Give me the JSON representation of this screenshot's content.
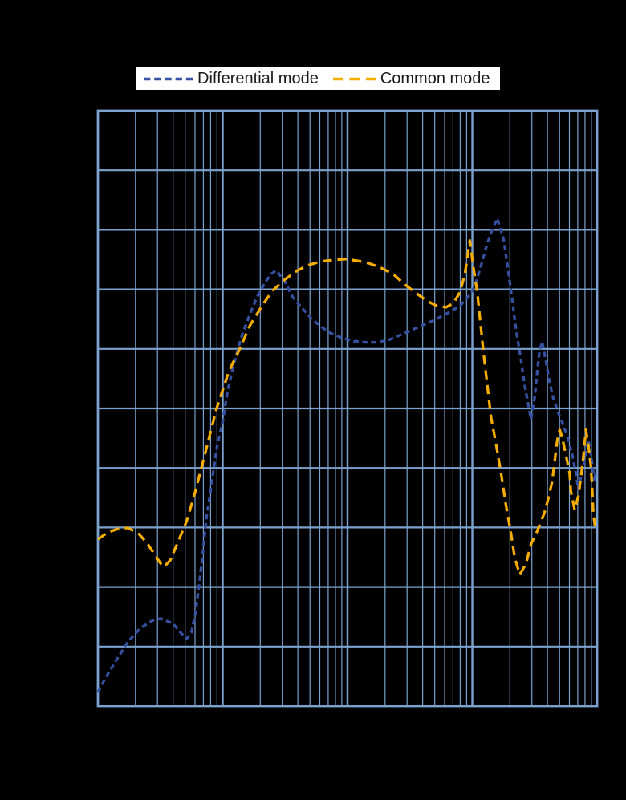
{
  "page": {
    "background_color": "#000000"
  },
  "legend": {
    "background_color": "#FFFFFF",
    "text_color": "#1A1A1A",
    "items": [
      {
        "label": "Differential mode",
        "color": "#3650A2",
        "dash_style": "short-dash"
      },
      {
        "label": "Common mode",
        "color": "#F5AD00",
        "dash_style": "long-dash"
      }
    ]
  },
  "chart_data": {
    "type": "line",
    "title": "",
    "xlabel": "",
    "ylabel": "",
    "x_axis": {
      "scale": "log",
      "decades": 4,
      "tick_labels_visible": false
    },
    "y_axis": {
      "divisions": 10,
      "tick_labels_visible": false
    },
    "grid": {
      "on": true,
      "color": "#7BA2CE",
      "border_color": "#7BA2CE"
    },
    "legend_position": "top-center",
    "series": [
      {
        "name": "Differential mode",
        "color": "#3650A2",
        "dash": [
          6.5,
          4.5
        ],
        "points_units": "x in log10-decades from left edge (0-4), y in grid divisions from bottom (0-10)",
        "points": [
          [
            0.0,
            0.23
          ],
          [
            0.06,
            0.47
          ],
          [
            0.15,
            0.78
          ],
          [
            0.24,
            1.08
          ],
          [
            0.34,
            1.31
          ],
          [
            0.44,
            1.44
          ],
          [
            0.5,
            1.47
          ],
          [
            0.6,
            1.39
          ],
          [
            0.66,
            1.24
          ],
          [
            0.71,
            1.13
          ],
          [
            0.75,
            1.24
          ],
          [
            0.78,
            1.55
          ],
          [
            0.81,
            2.02
          ],
          [
            0.84,
            2.56
          ],
          [
            0.87,
            3.17
          ],
          [
            0.91,
            3.71
          ],
          [
            0.95,
            4.31
          ],
          [
            1.0,
            4.78
          ],
          [
            1.04,
            5.3
          ],
          [
            1.09,
            5.75
          ],
          [
            1.15,
            6.2
          ],
          [
            1.21,
            6.54
          ],
          [
            1.27,
            6.85
          ],
          [
            1.34,
            7.12
          ],
          [
            1.39,
            7.26
          ],
          [
            1.43,
            7.32
          ],
          [
            1.5,
            7.12
          ],
          [
            1.56,
            6.87
          ],
          [
            1.63,
            6.7
          ],
          [
            1.71,
            6.51
          ],
          [
            1.79,
            6.37
          ],
          [
            1.86,
            6.27
          ],
          [
            1.95,
            6.19
          ],
          [
            2.05,
            6.13
          ],
          [
            2.14,
            6.11
          ],
          [
            2.24,
            6.11
          ],
          [
            2.33,
            6.15
          ],
          [
            2.43,
            6.24
          ],
          [
            2.56,
            6.36
          ],
          [
            2.69,
            6.48
          ],
          [
            2.82,
            6.62
          ],
          [
            2.9,
            6.72
          ],
          [
            2.97,
            6.88
          ],
          [
            3.02,
            7.05
          ],
          [
            3.07,
            7.4
          ],
          [
            3.11,
            7.7
          ],
          [
            3.15,
            7.95
          ],
          [
            3.2,
            8.19
          ],
          [
            3.25,
            7.85
          ],
          [
            3.29,
            7.28
          ],
          [
            3.32,
            6.81
          ],
          [
            3.35,
            6.33
          ],
          [
            3.39,
            5.82
          ],
          [
            3.42,
            5.39
          ],
          [
            3.45,
            5.05
          ],
          [
            3.47,
            4.82
          ],
          [
            3.5,
            5.19
          ],
          [
            3.52,
            5.63
          ],
          [
            3.54,
            5.98
          ],
          [
            3.56,
            6.12
          ],
          [
            3.59,
            5.8
          ],
          [
            3.62,
            5.43
          ],
          [
            3.65,
            5.16
          ],
          [
            3.69,
            4.92
          ],
          [
            3.73,
            4.72
          ],
          [
            3.77,
            4.47
          ],
          [
            3.8,
            4.23
          ],
          [
            3.83,
            3.91
          ],
          [
            3.85,
            3.64
          ],
          [
            3.88,
            3.94
          ],
          [
            3.91,
            4.25
          ],
          [
            3.93,
            4.47
          ],
          [
            3.95,
            4.23
          ],
          [
            3.97,
            3.94
          ],
          [
            3.98,
            3.77
          ],
          [
            3.99,
            3.98
          ]
        ]
      },
      {
        "name": "Common mode",
        "color": "#F5AD00",
        "dash": [
          11.5,
          7
        ],
        "points_units": "x in log10-decades from left edge (0-4), y in grid divisions from bottom (0-10)",
        "points": [
          [
            0.0,
            2.8
          ],
          [
            0.08,
            2.92
          ],
          [
            0.18,
            2.99
          ],
          [
            0.24,
            2.99
          ],
          [
            0.32,
            2.91
          ],
          [
            0.39,
            2.75
          ],
          [
            0.46,
            2.53
          ],
          [
            0.5,
            2.4
          ],
          [
            0.53,
            2.34
          ],
          [
            0.58,
            2.45
          ],
          [
            0.63,
            2.7
          ],
          [
            0.71,
            3.1
          ],
          [
            0.78,
            3.6
          ],
          [
            0.86,
            4.25
          ],
          [
            0.95,
            4.99
          ],
          [
            1.05,
            5.63
          ],
          [
            1.13,
            5.97
          ],
          [
            1.22,
            6.4
          ],
          [
            1.32,
            6.74
          ],
          [
            1.4,
            6.98
          ],
          [
            1.5,
            7.17
          ],
          [
            1.6,
            7.32
          ],
          [
            1.69,
            7.41
          ],
          [
            1.79,
            7.47
          ],
          [
            1.88,
            7.49
          ],
          [
            1.98,
            7.51
          ],
          [
            2.08,
            7.48
          ],
          [
            2.17,
            7.44
          ],
          [
            2.27,
            7.36
          ],
          [
            2.37,
            7.25
          ],
          [
            2.46,
            7.08
          ],
          [
            2.56,
            6.92
          ],
          [
            2.64,
            6.8
          ],
          [
            2.72,
            6.72
          ],
          [
            2.79,
            6.7
          ],
          [
            2.85,
            6.77
          ],
          [
            2.9,
            6.95
          ],
          [
            2.94,
            7.25
          ],
          [
            2.98,
            7.82
          ],
          [
            3.01,
            7.35
          ],
          [
            3.04,
            6.95
          ],
          [
            3.06,
            6.54
          ],
          [
            3.09,
            5.93
          ],
          [
            3.12,
            5.39
          ],
          [
            3.15,
            4.85
          ],
          [
            3.19,
            4.41
          ],
          [
            3.23,
            3.91
          ],
          [
            3.27,
            3.37
          ],
          [
            3.31,
            2.9
          ],
          [
            3.34,
            2.49
          ],
          [
            3.38,
            2.21
          ],
          [
            3.43,
            2.39
          ],
          [
            3.47,
            2.72
          ],
          [
            3.52,
            2.94
          ],
          [
            3.58,
            3.26
          ],
          [
            3.61,
            3.5
          ],
          [
            3.64,
            3.77
          ],
          [
            3.66,
            4.11
          ],
          [
            3.68,
            4.45
          ],
          [
            3.7,
            4.64
          ],
          [
            3.72,
            4.51
          ],
          [
            3.75,
            4.22
          ],
          [
            3.78,
            3.91
          ],
          [
            3.79,
            3.61
          ],
          [
            3.82,
            3.3
          ],
          [
            3.85,
            3.53
          ],
          [
            3.87,
            3.84
          ],
          [
            3.89,
            4.18
          ],
          [
            3.91,
            4.64
          ],
          [
            3.93,
            4.38
          ],
          [
            3.95,
            4.04
          ],
          [
            3.96,
            3.67
          ],
          [
            3.97,
            3.23
          ],
          [
            3.99,
            2.92
          ]
        ]
      }
    ]
  }
}
